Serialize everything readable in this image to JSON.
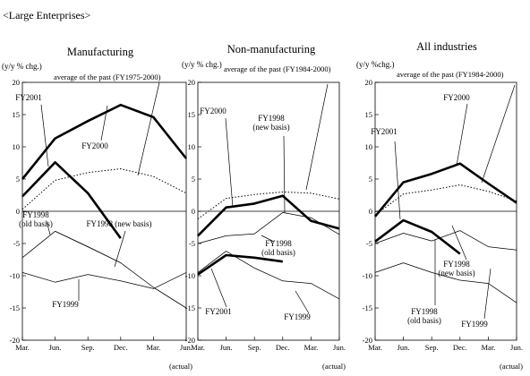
{
  "section_title": "<Large Enterprises>",
  "chart_data": [
    {
      "type": "line",
      "title": "Manufacturing",
      "ylabel": "(y/y % chg.)",
      "ylim": [
        -20,
        20
      ],
      "yticks": [
        20,
        15,
        10,
        5,
        0,
        -5,
        -10,
        -15,
        -20
      ],
      "categories": [
        "Mar.",
        "Jun.",
        "Sep.",
        "Dec.",
        "Mar.",
        "Jun."
      ],
      "xnote": "(actual)",
      "grid": false,
      "series": [
        {
          "name": "FY2000",
          "style": "bold",
          "values": [
            5.0,
            11.3,
            14.0,
            16.5,
            14.6,
            8.2
          ]
        },
        {
          "name": "FY2001",
          "style": "bold",
          "values": [
            2.3,
            7.6,
            2.8,
            -4.2,
            null,
            null
          ]
        },
        {
          "name": "average of the past (FY1975-2000)",
          "style": "dotted",
          "values": [
            0.3,
            4.8,
            6.0,
            6.6,
            5.4,
            2.8
          ]
        },
        {
          "name": "FY1998 (old basis)",
          "style": "thin",
          "values": [
            -7.2,
            -3.1,
            -5.5,
            -8.0,
            null,
            null
          ]
        },
        {
          "name": "FY1998 (new basis)",
          "style": "thin",
          "values": [
            null,
            -3.1,
            -5.5,
            -8.0,
            -11.8,
            -15.0
          ]
        },
        {
          "name": "FY1999",
          "style": "thin",
          "values": [
            -9.5,
            -11.0,
            -9.8,
            -10.8,
            -12.0,
            -9.5
          ]
        }
      ],
      "annotations": {
        "fy2001": "FY2001",
        "fy2000": "FY2000",
        "average": "average of the past (FY1975-2000)",
        "fy1998_old": [
          "FY1998",
          "(old basis)"
        ],
        "fy1998_new": "FY1998 (new basis)",
        "fy1999": "FY1999"
      }
    },
    {
      "type": "line",
      "title": "Non-manufacturing",
      "ylabel": "(y/y % chg.)",
      "ylim": [
        -20,
        20
      ],
      "yticks": [
        20,
        15,
        10,
        5,
        0,
        -5,
        -10,
        -15,
        -20
      ],
      "categories": [
        "Mar.",
        "Jun.",
        "Sep.",
        "Dec.",
        "Mar.",
        "Jun."
      ],
      "xnote": "(actual)",
      "grid": false,
      "series": [
        {
          "name": "FY2000",
          "style": "bold",
          "values": [
            -3.8,
            0.6,
            1.2,
            2.4,
            -1.5,
            -2.7
          ]
        },
        {
          "name": "FY2001",
          "style": "bold",
          "values": [
            -9.8,
            -6.8,
            -7.2,
            -7.8,
            null,
            null
          ]
        },
        {
          "name": "average of the past (FY1984-2000)",
          "style": "dotted",
          "values": [
            -1.2,
            2.0,
            2.6,
            3.0,
            2.8,
            1.9
          ]
        },
        {
          "name": "FY1998 (old basis)",
          "style": "thin",
          "values": [
            -5.0,
            -3.8,
            -3.5,
            -0.2,
            null,
            null
          ]
        },
        {
          "name": "FY1998 (new basis)",
          "style": "thin",
          "values": [
            null,
            null,
            null,
            -0.2,
            -1.0,
            -3.6
          ]
        },
        {
          "name": "FY1999",
          "style": "thin",
          "values": [
            -9.5,
            -6.2,
            -8.8,
            -10.8,
            -11.2,
            -13.6
          ]
        }
      ],
      "annotations": {
        "average": "average of the past (FY1984-2000)",
        "fy2000": "FY2000",
        "fy1998_new": [
          "FY1998",
          "(new basis)"
        ],
        "fy1998_old": [
          "FY1998",
          "(old basis)"
        ],
        "fy2001": "FY2001",
        "fy1999": "FY1999"
      }
    },
    {
      "type": "line",
      "title": "All industries",
      "ylabel": "(y/y %chg.)",
      "ylim": [
        -20,
        20
      ],
      "yticks": [
        20,
        15,
        10,
        5,
        0,
        -5,
        -10,
        -15,
        -20
      ],
      "categories": [
        "Mar.",
        "Jun.",
        "Sep.",
        "Dec.",
        "Mar.",
        "Jun."
      ],
      "xnote": "(actual)",
      "grid": false,
      "series": [
        {
          "name": "FY2000",
          "style": "bold",
          "values": [
            -0.8,
            4.5,
            5.8,
            7.4,
            4.3,
            1.3
          ]
        },
        {
          "name": "FY2001",
          "style": "bold",
          "values": [
            -4.7,
            -1.4,
            -3.2,
            -6.6,
            null,
            null
          ]
        },
        {
          "name": "average of the past (FY1984-2000)",
          "style": "dotted",
          "values": [
            -0.6,
            2.7,
            3.3,
            4.1,
            3.1,
            1.6
          ]
        },
        {
          "name": "FY1998 (old basis)",
          "style": "thin",
          "values": [
            -5.0,
            -3.4,
            -4.6,
            -3.0,
            null,
            null
          ]
        },
        {
          "name": "FY1998 (new basis)",
          "style": "thin",
          "values": [
            null,
            null,
            null,
            -3.0,
            -5.5,
            -6.0
          ]
        },
        {
          "name": "FY1999",
          "style": "thin",
          "values": [
            -9.5,
            -8.0,
            -9.5,
            -10.7,
            -11.2,
            -14.2
          ]
        }
      ],
      "annotations": {
        "average": "average of the past (FY1984-2000)",
        "fy2000": "FY2000",
        "fy2001": "FY2001",
        "fy1998_new": [
          "FY1998",
          "(new basis)"
        ],
        "fy1998_old": [
          "FY1998",
          "(old basis)"
        ],
        "fy1999": "FY1999"
      }
    }
  ]
}
